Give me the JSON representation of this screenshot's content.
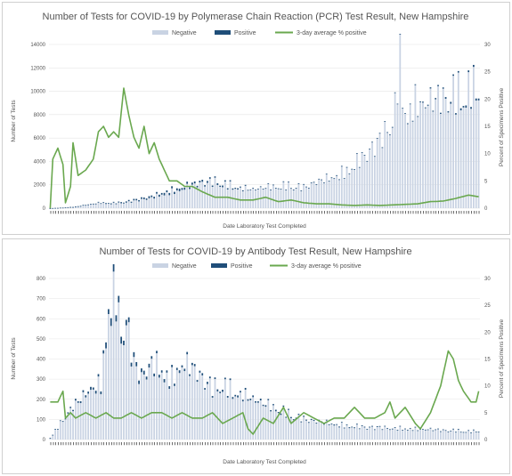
{
  "colors": {
    "negative": "#c9d3e3",
    "positive": "#1f4e79",
    "average": "#6aa84f"
  },
  "chart_data": [
    {
      "type": "bar",
      "title": "Number of Tests for COVID-19 by Polymerase Chain Reaction (PCR) Test Result, New Hampshire",
      "xlabel": "Date Laboratory Test Completed",
      "ylabel": "Number of Tests",
      "y2label": "Percent of Specimens Positive",
      "ylim": [
        0,
        14000
      ],
      "y2lim": [
        0,
        30
      ],
      "yticks": [
        "0",
        "2000",
        "4000",
        "6000",
        "8000",
        "10000",
        "12000",
        "14000"
      ],
      "y2ticks": [
        "0",
        "5",
        "10",
        "15",
        "20",
        "25",
        "30"
      ],
      "legend": [
        "Negative",
        "Positive",
        "3-day average % positive"
      ],
      "legend_position": "top",
      "grid": true,
      "n_dates": 170,
      "negative_keypoints": [
        [
          0,
          0
        ],
        [
          5,
          40
        ],
        [
          10,
          120
        ],
        [
          15,
          300
        ],
        [
          20,
          450
        ],
        [
          25,
          400
        ],
        [
          30,
          500
        ],
        [
          35,
          700
        ],
        [
          40,
          900
        ],
        [
          45,
          1300
        ],
        [
          50,
          1500
        ],
        [
          55,
          1900
        ],
        [
          60,
          2200
        ],
        [
          65,
          2300
        ],
        [
          70,
          2000
        ],
        [
          75,
          1700
        ],
        [
          80,
          1600
        ],
        [
          85,
          1800
        ],
        [
          90,
          1900
        ],
        [
          95,
          2000
        ],
        [
          100,
          1800
        ],
        [
          105,
          2300
        ],
        [
          110,
          2600
        ],
        [
          115,
          3000
        ],
        [
          120,
          3800
        ],
        [
          125,
          4800
        ],
        [
          130,
          6000
        ],
        [
          135,
          7500
        ],
        [
          138,
          12500
        ],
        [
          140,
          8500
        ],
        [
          145,
          9000
        ],
        [
          150,
          9300
        ],
        [
          155,
          9600
        ],
        [
          160,
          10000
        ],
        [
          165,
          10500
        ],
        [
          169,
          10200
        ]
      ],
      "positive_keypoints": [
        [
          0,
          0
        ],
        [
          10,
          20
        ],
        [
          20,
          60
        ],
        [
          30,
          100
        ],
        [
          40,
          160
        ],
        [
          50,
          200
        ],
        [
          60,
          150
        ],
        [
          70,
          120
        ],
        [
          80,
          60
        ],
        [
          90,
          40
        ],
        [
          100,
          30
        ],
        [
          110,
          30
        ],
        [
          120,
          40
        ],
        [
          130,
          50
        ],
        [
          140,
          60
        ],
        [
          150,
          90
        ],
        [
          160,
          150
        ],
        [
          169,
          180
        ]
      ],
      "average_keypoints": [
        [
          0,
          0
        ],
        [
          1,
          9
        ],
        [
          3,
          11
        ],
        [
          5,
          8
        ],
        [
          6,
          1
        ],
        [
          8,
          4
        ],
        [
          9,
          12
        ],
        [
          11,
          6
        ],
        [
          14,
          7
        ],
        [
          17,
          9
        ],
        [
          19,
          14
        ],
        [
          21,
          15
        ],
        [
          23,
          13
        ],
        [
          25,
          14
        ],
        [
          27,
          13
        ],
        [
          29,
          22
        ],
        [
          31,
          17
        ],
        [
          33,
          13
        ],
        [
          35,
          11
        ],
        [
          37,
          15
        ],
        [
          39,
          10
        ],
        [
          41,
          12
        ],
        [
          43,
          9
        ],
        [
          45,
          7
        ],
        [
          47,
          5
        ],
        [
          50,
          5
        ],
        [
          53,
          4
        ],
        [
          56,
          4
        ],
        [
          60,
          3
        ],
        [
          65,
          2
        ],
        [
          70,
          2
        ],
        [
          75,
          1.5
        ],
        [
          80,
          1.5
        ],
        [
          85,
          2
        ],
        [
          90,
          1.2
        ],
        [
          95,
          1.5
        ],
        [
          100,
          1
        ],
        [
          105,
          0.8
        ],
        [
          110,
          0.8
        ],
        [
          115,
          0.6
        ],
        [
          120,
          0.5
        ],
        [
          125,
          0.6
        ],
        [
          130,
          0.5
        ],
        [
          135,
          0.6
        ],
        [
          140,
          0.7
        ],
        [
          145,
          0.8
        ],
        [
          150,
          1.2
        ],
        [
          155,
          1.3
        ],
        [
          160,
          1.8
        ],
        [
          165,
          2.4
        ],
        [
          169,
          2.1
        ]
      ]
    },
    {
      "type": "bar",
      "title": "Number of Tests for COVID-19 by Antibody Test Result, New Hampshire",
      "xlabel": "Date Laboratory Test Completed",
      "ylabel": "Number of Tests",
      "y2label": "Percent of Specimens Positive",
      "ylim": [
        0,
        800
      ],
      "y2lim": [
        0,
        30
      ],
      "yticks": [
        "0",
        "100",
        "200",
        "300",
        "400",
        "500",
        "600",
        "700",
        "800"
      ],
      "y2ticks": [
        "0",
        "5",
        "10",
        "15",
        "20",
        "25",
        "30"
      ],
      "legend": [
        "Negative",
        "Positive",
        "3-day average % positive"
      ],
      "legend_position": "top",
      "grid": true,
      "n_dates": 170,
      "negative_keypoints": [
        [
          0,
          10
        ],
        [
          4,
          80
        ],
        [
          8,
          150
        ],
        [
          12,
          200
        ],
        [
          16,
          250
        ],
        [
          20,
          270
        ],
        [
          23,
          680
        ],
        [
          26,
          720
        ],
        [
          28,
          520
        ],
        [
          30,
          600
        ],
        [
          33,
          380
        ],
        [
          36,
          310
        ],
        [
          40,
          380
        ],
        [
          44,
          350
        ],
        [
          48,
          300
        ],
        [
          52,
          380
        ],
        [
          56,
          360
        ],
        [
          60,
          310
        ],
        [
          64,
          260
        ],
        [
          68,
          280
        ],
        [
          72,
          240
        ],
        [
          76,
          220
        ],
        [
          80,
          200
        ],
        [
          84,
          180
        ],
        [
          88,
          160
        ],
        [
          92,
          140
        ],
        [
          96,
          120
        ],
        [
          100,
          100
        ],
        [
          105,
          90
        ],
        [
          110,
          80
        ],
        [
          115,
          70
        ],
        [
          120,
          65
        ],
        [
          125,
          60
        ],
        [
          130,
          60
        ],
        [
          135,
          55
        ],
        [
          140,
          55
        ],
        [
          145,
          50
        ],
        [
          150,
          50
        ],
        [
          155,
          45
        ],
        [
          160,
          45
        ],
        [
          165,
          40
        ],
        [
          169,
          40
        ]
      ],
      "positive_keypoints": [
        [
          0,
          0
        ],
        [
          10,
          8
        ],
        [
          20,
          15
        ],
        [
          25,
          40
        ],
        [
          30,
          25
        ],
        [
          40,
          15
        ],
        [
          50,
          12
        ],
        [
          60,
          10
        ],
        [
          80,
          8
        ],
        [
          100,
          5
        ],
        [
          120,
          4
        ],
        [
          140,
          3
        ],
        [
          160,
          3
        ],
        [
          169,
          3
        ]
      ],
      "average_keypoints": [
        [
          0,
          7
        ],
        [
          3,
          7
        ],
        [
          5,
          9
        ],
        [
          6,
          4
        ],
        [
          8,
          5
        ],
        [
          10,
          4
        ],
        [
          14,
          5
        ],
        [
          18,
          4
        ],
        [
          22,
          5
        ],
        [
          25,
          4
        ],
        [
          28,
          4
        ],
        [
          32,
          5
        ],
        [
          36,
          4
        ],
        [
          40,
          5
        ],
        [
          44,
          5
        ],
        [
          48,
          4
        ],
        [
          52,
          5
        ],
        [
          56,
          4
        ],
        [
          60,
          4
        ],
        [
          64,
          5
        ],
        [
          68,
          3
        ],
        [
          72,
          4
        ],
        [
          76,
          5
        ],
        [
          78,
          2
        ],
        [
          80,
          1
        ],
        [
          84,
          4
        ],
        [
          88,
          3
        ],
        [
          92,
          6
        ],
        [
          95,
          3
        ],
        [
          100,
          5
        ],
        [
          104,
          4
        ],
        [
          108,
          3
        ],
        [
          112,
          4
        ],
        [
          116,
          4
        ],
        [
          120,
          6
        ],
        [
          124,
          4
        ],
        [
          128,
          4
        ],
        [
          132,
          5
        ],
        [
          134,
          7
        ],
        [
          136,
          4
        ],
        [
          140,
          6
        ],
        [
          144,
          3
        ],
        [
          146,
          2
        ],
        [
          150,
          5
        ],
        [
          154,
          10
        ],
        [
          157,
          16.5
        ],
        [
          159,
          15
        ],
        [
          161,
          11
        ],
        [
          163,
          9
        ],
        [
          166,
          7
        ],
        [
          168,
          7
        ],
        [
          169,
          9
        ]
      ]
    }
  ]
}
